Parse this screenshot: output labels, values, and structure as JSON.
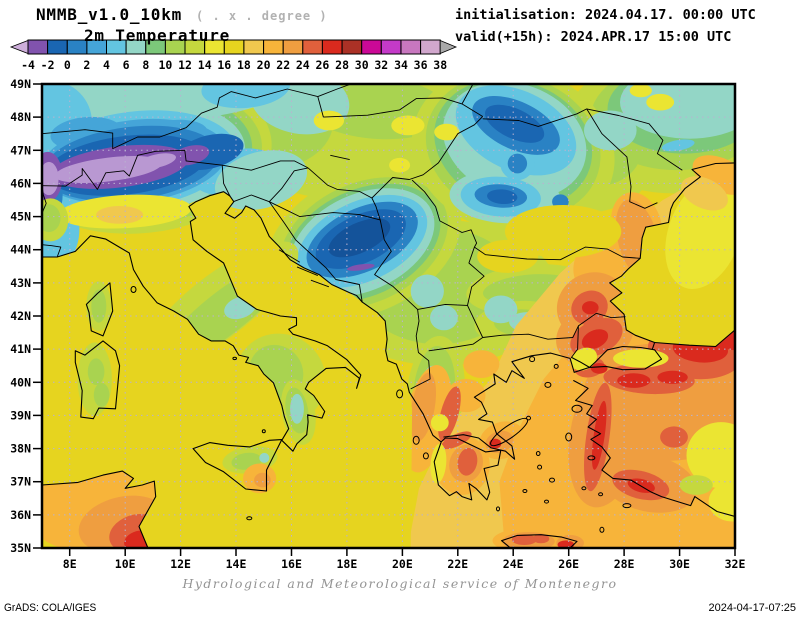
{
  "header": {
    "model": "NMMB_v1.0_10km",
    "grid_note": "( . x . degree )",
    "variable": "2m Temperature",
    "initialisation": "initialisation: 2024.04.17. 00:00 UTC",
    "valid": "valid(+15h): 2024.APR.17 15:00 UTC"
  },
  "legend": {
    "tick_labels": [
      "-4",
      "-2",
      "0",
      "2",
      "4",
      "6",
      "8",
      "10",
      "12",
      "14",
      "16",
      "18",
      "20",
      "22",
      "24",
      "26",
      "28",
      "30",
      "32",
      "34",
      "36",
      "38"
    ],
    "segment_colors": [
      "#8153ae",
      "#1a66b2",
      "#2a82c4",
      "#45a5d8",
      "#63c5e1",
      "#93d6c6",
      "#7cc87a",
      "#a9d350",
      "#c5d83e",
      "#ebe532",
      "#e6d41f",
      "#f0c84e",
      "#f7b43a",
      "#ef9e40",
      "#e0603c",
      "#da2a1e",
      "#ab3126",
      "#cb0996",
      "#c43ac8",
      "#c877bf",
      "#d1a7cd"
    ],
    "underflow_color": "#cdaeda",
    "overflow_color": "#a9a9a9"
  },
  "map_axes": {
    "lat_labels": [
      "49N",
      "48N",
      "47N",
      "46N",
      "45N",
      "44N",
      "43N",
      "42N",
      "41N",
      "40N",
      "39N",
      "38N",
      "37N",
      "36N",
      "35N"
    ],
    "lon_labels": [
      "8E",
      "10E",
      "12E",
      "14E",
      "16E",
      "18E",
      "20E",
      "22E",
      "24E",
      "26E",
      "28E",
      "30E",
      "32E"
    ],
    "grid_color": "#b9b2d0"
  },
  "footer": {
    "credit": "Hydrological and Meteorological service of Montenegro",
    "engine": "GrADS: COLA/IGES",
    "generated": "2024-04-17-07:25"
  }
}
